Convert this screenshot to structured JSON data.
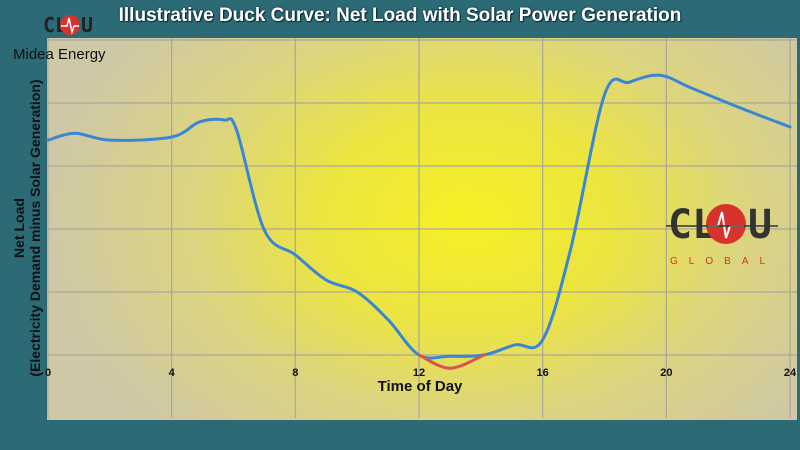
{
  "title": "Illustrative Duck Curve: Net Load with Solar Power Generation",
  "brand": {
    "name": "Midea Energy",
    "logo_text": "CLOU",
    "logo_sub": "GLOBAL"
  },
  "colors": {
    "background": "#2c6a76",
    "net_load": "#3a86d4",
    "belly": "#d9534f",
    "logo_red": "#d7332d"
  },
  "chart_data": {
    "type": "line",
    "title": "Illustrative Duck Curve: Net Load with Solar Power Generation",
    "xlabel": "Time of Day",
    "ylabel": "Net Load",
    "ylabel_sub": "(Electricity Demand minus Solar Generation)",
    "xlim": [
      0,
      24
    ],
    "xticks": [
      "0",
      "4",
      "8",
      "12",
      "16",
      "20",
      "24"
    ],
    "ylim": [
      -1,
      5
    ],
    "yticks_labeled": false,
    "grid": true,
    "series": [
      {
        "color": "#3a86d4",
        "x": [
          0,
          0.87,
          2,
          4,
          4.9,
          5.7,
          6.1,
          7,
          8,
          9,
          10,
          11,
          12,
          13,
          14.1,
          15.1,
          16,
          16.9,
          18,
          18.8,
          19.8,
          20.8,
          22.4,
          24
        ],
        "y": [
          3.41,
          3.52,
          3.41,
          3.46,
          3.7,
          3.73,
          3.57,
          1.98,
          1.59,
          1.19,
          1.0,
          0.56,
          0,
          -0.02,
          0,
          0.16,
          0.24,
          1.67,
          4.13,
          4.33,
          4.44,
          4.24,
          3.92,
          3.62
        ]
      },
      {
        "color": "#d9534f",
        "x": [
          12,
          13,
          14.1
        ],
        "y": [
          0,
          -0.21,
          0
        ]
      }
    ]
  }
}
